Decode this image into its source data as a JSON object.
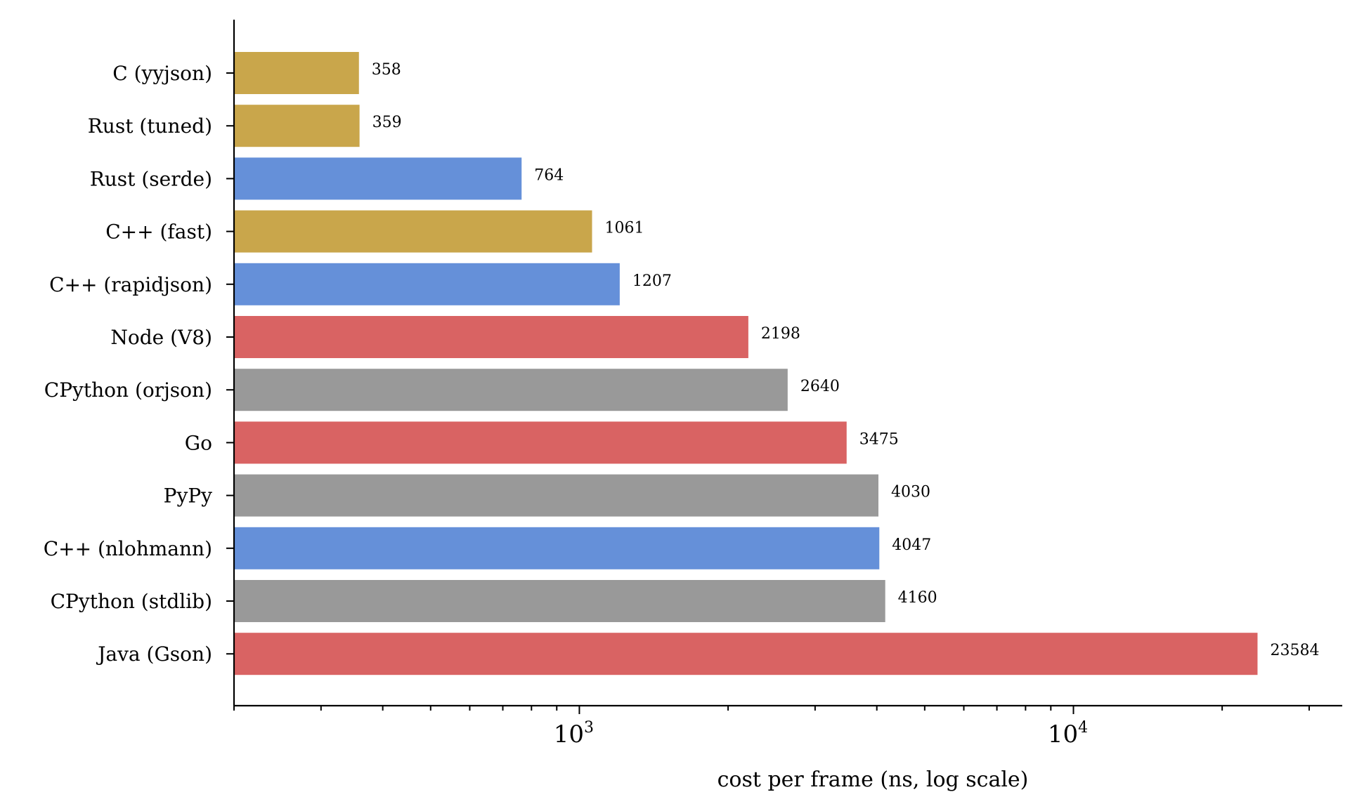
{
  "chart_data": {
    "type": "bar",
    "orientation": "horizontal",
    "xscale": "log",
    "xlim": [
      200,
      35000
    ],
    "xlabel": "cost per frame (ns, log scale)",
    "grid": false,
    "legend": "none",
    "major_ticks": [
      {
        "value": 1000,
        "base": "10",
        "exp": "3"
      },
      {
        "value": 10000,
        "base": "10",
        "exp": "4"
      }
    ],
    "categories": [
      "C (yyjson)",
      "Rust (tuned)",
      "Rust (serde)",
      "C++ (fast)",
      "C++ (rapidjson)",
      "Node (V8)",
      "CPython (orjson)",
      "Go",
      "PyPy",
      "C++ (nlohmann)",
      "CPython (stdlib)",
      "Java (Gson)"
    ],
    "values": [
      358,
      359,
      764,
      1061,
      1207,
      2198,
      2640,
      3475,
      4030,
      4047,
      4160,
      23584
    ],
    "value_labels": [
      "358",
      "359",
      "764",
      "1061",
      "1207",
      "2198",
      "2640",
      "3475",
      "4030",
      "4047",
      "4160",
      "23584"
    ],
    "colors": [
      "#c9a64b",
      "#c9a64b",
      "#6590d9",
      "#c9a64b",
      "#6590d9",
      "#d96363",
      "#999999",
      "#d96363",
      "#999999",
      "#6590d9",
      "#999999",
      "#d96363"
    ]
  }
}
